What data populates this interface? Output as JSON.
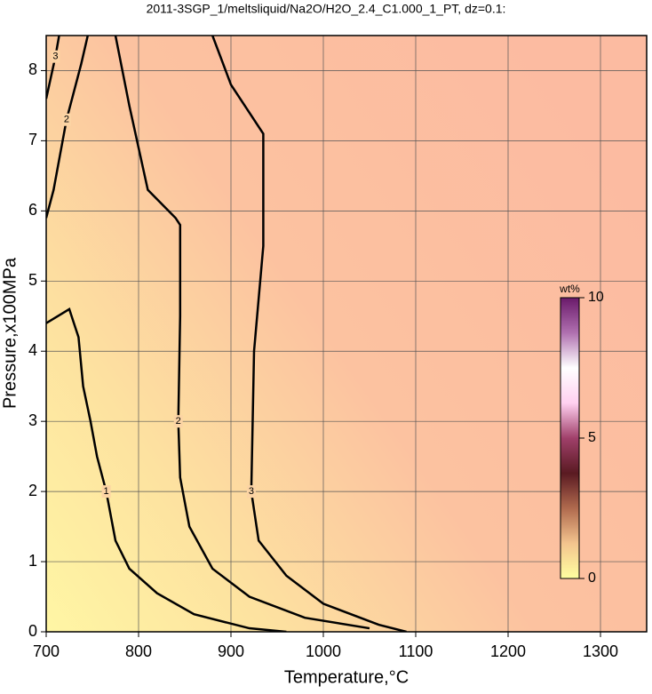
{
  "chart_data": {
    "type": "contour",
    "title": "2011-3SGP_1/meltsliquid/Na2O/H2O_2.4_C1.000_1_PT, dz=0.1:",
    "x_label": "Temperature,°C",
    "y_label": "Pressure,x100MPa",
    "xlim": [
      700,
      1350
    ],
    "xticks": [
      700,
      800,
      900,
      1000,
      1100,
      1200,
      1300
    ],
    "ylim": [
      0,
      8.5
    ],
    "yticks": [
      0,
      1,
      2,
      3,
      4,
      5,
      6,
      7,
      8
    ],
    "grid": true,
    "contours": [
      {
        "level": 1,
        "x": [
          700,
          725,
          735,
          740,
          748,
          755,
          765,
          775,
          790,
          820,
          860,
          920,
          960
        ],
        "y": [
          4.4,
          4.6,
          4.2,
          3.5,
          3.0,
          2.5,
          2.0,
          1.3,
          0.9,
          0.55,
          0.25,
          0.05,
          0
        ]
      },
      {
        "level": 2,
        "x": [
          775,
          790,
          810,
          840,
          845,
          845,
          843,
          845,
          855,
          880,
          920,
          980,
          1050
        ],
        "y": [
          8.5,
          7.5,
          6.3,
          5.9,
          5.8,
          4.5,
          3.0,
          2.2,
          1.5,
          0.9,
          0.5,
          0.2,
          0.05
        ]
      },
      {
        "level": 2,
        "x": [
          700,
          708,
          715,
          722,
          730,
          738,
          745
        ],
        "y": [
          5.9,
          6.3,
          6.8,
          7.3,
          7.7,
          8.1,
          8.5
        ]
      },
      {
        "level": 3,
        "x": [
          880,
          900,
          935,
          935,
          925,
          922,
          930,
          960,
          1000,
          1060,
          1090
        ],
        "y": [
          8.5,
          7.8,
          7.1,
          5.5,
          4.0,
          2.0,
          1.3,
          0.8,
          0.4,
          0.1,
          0
        ]
      },
      {
        "level": 3,
        "x": [
          700,
          705,
          710,
          714
        ],
        "y": [
          7.6,
          7.9,
          8.2,
          8.5
        ]
      }
    ],
    "line_color": "#000000",
    "colorbar": {
      "label": "wt%",
      "lim": [
        0,
        10
      ],
      "ticks": [
        0,
        5,
        10
      ],
      "colors": [
        "#ffffa0",
        "#f3c48e",
        "#b06a4e",
        "#5a1a22",
        "#a0406a",
        "#ffd0f0",
        "#ffffff",
        "#b070b0",
        "#6a1a6a"
      ]
    }
  }
}
